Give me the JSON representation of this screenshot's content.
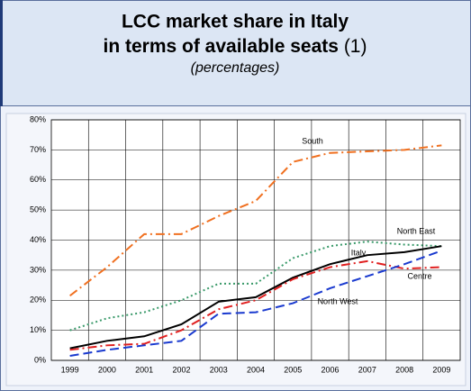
{
  "chart_data": {
    "type": "line",
    "title": [
      "LCC market share in Italy",
      "in terms of available seats"
    ],
    "title_note": "(1)",
    "subtitle": "(percentages)",
    "categories": [
      "1999",
      "2000",
      "2001",
      "2002",
      "2003",
      "2004",
      "2005",
      "2006",
      "2007",
      "2008",
      "2009"
    ],
    "series": [
      {
        "name": "South",
        "color": "#f07020",
        "dash": "10 4 2 4",
        "values": [
          21.5,
          31,
          42,
          42,
          48,
          53,
          66,
          69,
          69.5,
          70,
          71.5
        ]
      },
      {
        "name": "North East",
        "color": "#3a9a6a",
        "dash": "2 3",
        "values": [
          10,
          14,
          16,
          20,
          25.5,
          25.5,
          34,
          38,
          39.5,
          38.5,
          38
        ]
      },
      {
        "name": "Italy",
        "color": "#000000",
        "dash": "none",
        "values": [
          4,
          6.5,
          8,
          12,
          19.5,
          21,
          27.5,
          32,
          35,
          36,
          38
        ]
      },
      {
        "name": "Centre",
        "color": "#e02020",
        "dash": "10 4 2 4",
        "values": [
          3.5,
          5,
          5.5,
          10,
          17,
          20,
          27,
          31,
          33,
          30.5,
          31
        ]
      },
      {
        "name": "North West",
        "color": "#1a3acf",
        "dash": "10 5",
        "values": [
          1.5,
          3.5,
          5,
          6.5,
          15.5,
          16,
          19,
          24,
          28,
          32,
          36.5
        ]
      }
    ],
    "ylim": [
      0,
      80
    ],
    "yticks": [
      {
        "value": 0,
        "label": "0%"
      },
      {
        "value": 10,
        "label": "10%"
      },
      {
        "value": 20,
        "label": "20%"
      },
      {
        "value": 30,
        "label": "30%"
      },
      {
        "value": 40,
        "label": "40%"
      },
      {
        "value": 50,
        "label": "50%"
      },
      {
        "value": 60,
        "label": "60%"
      },
      {
        "value": 70,
        "label": "70%"
      },
      {
        "value": 80,
        "label": "80%"
      }
    ],
    "grid": true
  }
}
